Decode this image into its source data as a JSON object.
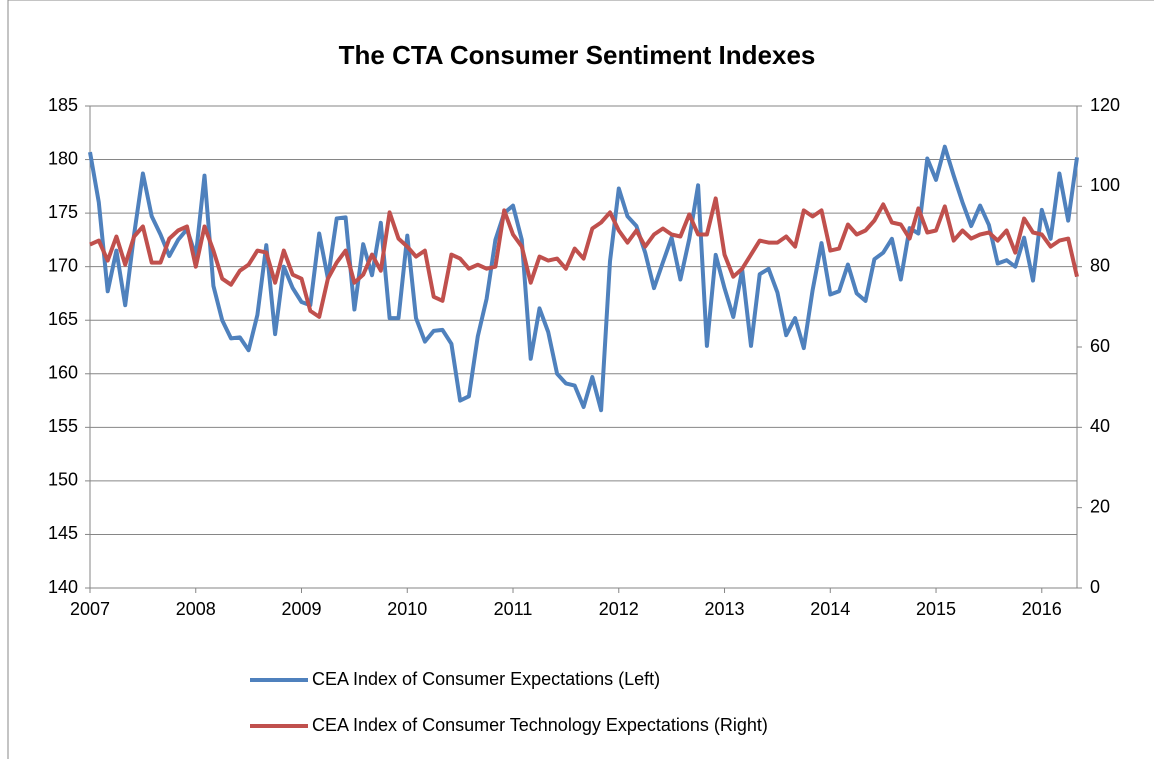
{
  "chart_data": {
    "type": "line",
    "title": "The CTA Consumer Sentiment Indexes",
    "x": [
      2007,
      2007.083,
      2007.167,
      2007.25,
      2007.333,
      2007.417,
      2007.5,
      2007.583,
      2007.667,
      2007.75,
      2007.833,
      2007.917,
      2008,
      2008.083,
      2008.167,
      2008.25,
      2008.333,
      2008.417,
      2008.5,
      2008.583,
      2008.667,
      2008.75,
      2008.833,
      2008.917,
      2009,
      2009.083,
      2009.167,
      2009.25,
      2009.333,
      2009.417,
      2009.5,
      2009.583,
      2009.667,
      2009.75,
      2009.833,
      2009.917,
      2010,
      2010.083,
      2010.167,
      2010.25,
      2010.333,
      2010.417,
      2010.5,
      2010.583,
      2010.667,
      2010.75,
      2010.833,
      2010.917,
      2011,
      2011.083,
      2011.167,
      2011.25,
      2011.333,
      2011.417,
      2011.5,
      2011.583,
      2011.667,
      2011.75,
      2011.833,
      2011.917,
      2012,
      2012.083,
      2012.167,
      2012.25,
      2012.333,
      2012.417,
      2012.5,
      2012.583,
      2012.667,
      2012.75,
      2012.833,
      2012.917,
      2013,
      2013.083,
      2013.167,
      2013.25,
      2013.333,
      2013.417,
      2013.5,
      2013.583,
      2013.667,
      2013.75,
      2013.833,
      2013.917,
      2014,
      2014.083,
      2014.167,
      2014.25,
      2014.333,
      2014.417,
      2014.5,
      2014.583,
      2014.667,
      2014.75,
      2014.833,
      2014.917,
      2015,
      2015.083,
      2015.167,
      2015.25,
      2015.333,
      2015.417,
      2015.5,
      2015.583,
      2015.667,
      2015.75,
      2015.833,
      2015.917,
      2016,
      2016.083,
      2016.167,
      2016.25,
      2016.333
    ],
    "xlim": [
      2007,
      2016.333
    ],
    "xticks": [
      2007,
      2008,
      2009,
      2010,
      2011,
      2012,
      2013,
      2014,
      2015,
      2016
    ],
    "ylim": [
      140,
      185
    ],
    "yticks": [
      140,
      145,
      150,
      155,
      160,
      165,
      170,
      175,
      180,
      185
    ],
    "y2lim": [
      0,
      120
    ],
    "y2ticks": [
      0,
      20,
      40,
      60,
      80,
      100,
      120
    ],
    "grid": true,
    "series": [
      {
        "name": "CEA Index of Consumer Expectations (Left)",
        "color": "#4f81bd",
        "axis": "y",
        "values": [
          180.7,
          176,
          167.7,
          171.5,
          166.4,
          173,
          178.7,
          174.7,
          173,
          171,
          172.5,
          173.5,
          171,
          178.5,
          168.2,
          165,
          163.3,
          163.4,
          162.2,
          165.5,
          172,
          163.7,
          170,
          168,
          166.7,
          166.4,
          173.1,
          168.9,
          174.5,
          174.6,
          166,
          172.1,
          169.2,
          174.1,
          165.2,
          165.2,
          172.9,
          165.2,
          163,
          164,
          164.1,
          162.8,
          157.5,
          157.9,
          163.5,
          167,
          172.5,
          175,
          175.7,
          172.5,
          161.4,
          166.1,
          163.9,
          160,
          159.1,
          158.9,
          156.9,
          159.7,
          156.6,
          170.5,
          177.3,
          174.7,
          173.8,
          171.3,
          168,
          170.4,
          172.7,
          168.8,
          172.6,
          177.6,
          162.6,
          171.1,
          168,
          165.3,
          169.7,
          162.6,
          169.3,
          169.8,
          167.6,
          163.6,
          165.2,
          162.4,
          167.8,
          172.2,
          167.4,
          167.7,
          170.2,
          167.5,
          166.8,
          170.7,
          171.3,
          172.6,
          168.8,
          173.6,
          173.1,
          180.1,
          178.1,
          181.2,
          178.5,
          176,
          173.8,
          175.7,
          173.9,
          170.3,
          170.6,
          170,
          172.7,
          168.7,
          175.3,
          172.6,
          178.7,
          174.3,
          180.2
        ]
      },
      {
        "name": "CEA Index of Consumer Technology Expectations (Right)",
        "color": "#c0504d",
        "axis": "y2",
        "values": [
          85.5,
          86.5,
          81.5,
          87.5,
          80.5,
          87.5,
          90,
          81,
          81,
          87,
          89,
          90,
          80,
          90,
          84,
          77,
          75.5,
          79,
          80.5,
          84,
          83.5,
          76,
          84,
          78,
          77,
          69,
          67.5,
          77,
          81,
          84,
          76,
          78,
          83,
          79,
          93.5,
          87,
          85,
          82.5,
          84,
          72.5,
          71.5,
          83,
          82,
          79.5,
          80.5,
          79.5,
          80,
          94,
          88,
          85,
          76,
          82.5,
          81.5,
          82,
          79.5,
          84.5,
          82,
          89.5,
          91,
          93.5,
          89,
          86,
          89,
          85,
          88,
          89.5,
          88,
          87.5,
          93,
          88,
          88,
          97,
          83,
          77.5,
          79.5,
          83,
          86.5,
          86,
          86,
          87.5,
          85,
          94,
          92.5,
          94,
          84,
          84.5,
          90.5,
          88,
          89,
          91.5,
          95.5,
          91,
          90.5,
          87,
          94.5,
          88.5,
          89,
          95,
          86.5,
          89,
          87,
          88,
          88.5,
          86.5,
          89,
          83.5,
          92,
          88.5,
          88,
          85,
          86.5,
          87,
          77.5
        ]
      }
    ]
  }
}
